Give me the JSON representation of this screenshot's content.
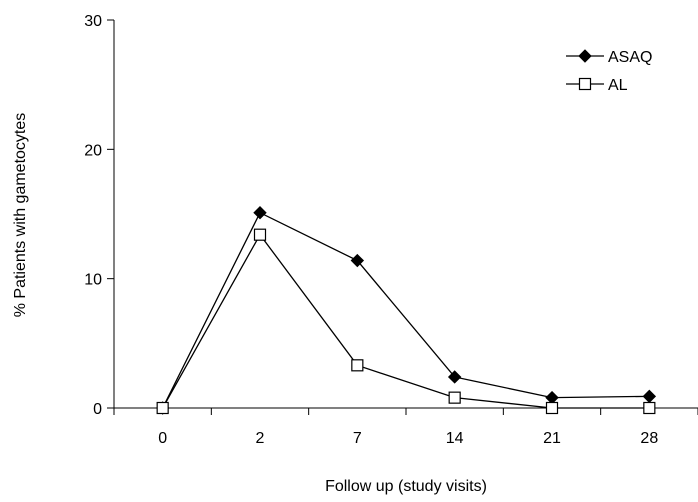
{
  "chart_data": {
    "type": "line",
    "title": "",
    "xlabel": "Follow up (study visits)",
    "ylabel": "% Patients with gametocytes",
    "categories": [
      "0",
      "2",
      "7",
      "14",
      "21",
      "28"
    ],
    "ylim": [
      0,
      30
    ],
    "yticks": [
      "0",
      "10",
      "20",
      "30"
    ],
    "grid": false,
    "legend_position": "top-right",
    "series": [
      {
        "name": "ASAQ",
        "marker": "filled-diamond",
        "color": "#000000",
        "values": [
          0,
          15.1,
          11.4,
          2.4,
          0.8,
          0.9
        ]
      },
      {
        "name": "AL",
        "marker": "open-square",
        "color": "#000000",
        "values": [
          0,
          13.4,
          3.3,
          0.8,
          0,
          0
        ]
      }
    ]
  }
}
